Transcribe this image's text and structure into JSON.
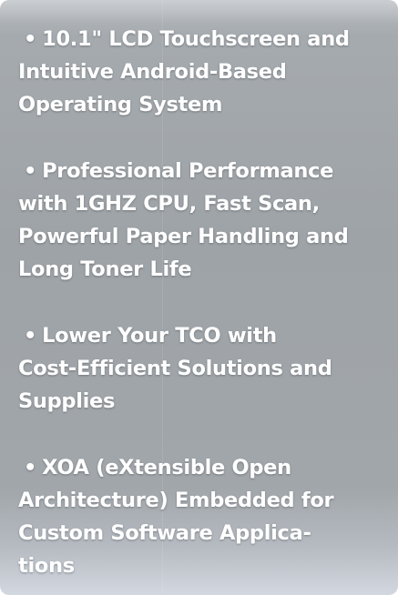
{
  "bullet_char": "•",
  "features": [
    {
      "text": "10.1\" LCD Touchscreen and\nIntuitive Android-Based\nOperating System"
    },
    {
      "text": "Professional Performance\nwith 1GHZ CPU, Fast Scan,\nPowerful Paper Handling and\nLong Toner Life"
    },
    {
      "text": "Lower Your TCO with\nCost-Efficient Solutions and\nSupplies"
    },
    {
      "text": "XOA (eXtensible Open\nArchitecture) Embedded for\nCustom Software Applica-\ntions"
    }
  ]
}
